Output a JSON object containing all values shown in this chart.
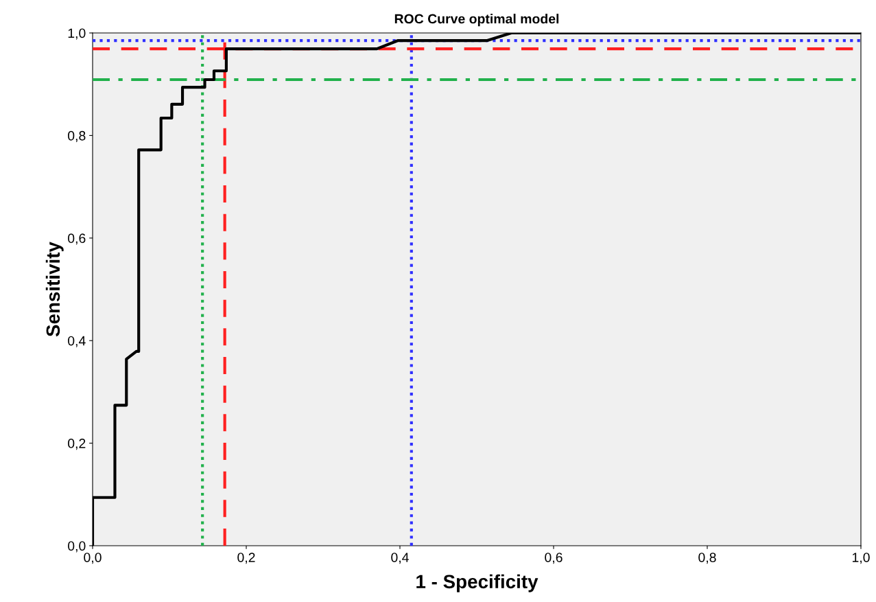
{
  "chart_data": {
    "type": "step",
    "title": "ROC Curve optimal model",
    "xlabel": "1 - Specificity",
    "ylabel": "Sensitivity",
    "series": [
      {
        "color": "#000000",
        "x": [
          0,
          0,
          0.029,
          0.029,
          0.044,
          0.044,
          0.057,
          0.06,
          0.06,
          0.089,
          0.089,
          0.103,
          0.103,
          0.117,
          0.117,
          0.146,
          0.146,
          0.158,
          0.158,
          0.174,
          0.174,
          0.37,
          0.397,
          0.513,
          0.545,
          1.0
        ],
        "values": [
          0,
          0.094,
          0.094,
          0.274,
          0.274,
          0.364,
          0.379,
          0.379,
          0.772,
          0.772,
          0.834,
          0.834,
          0.861,
          0.861,
          0.894,
          0.894,
          0.909,
          0.909,
          0.926,
          0.926,
          0.969,
          0.969,
          0.985,
          0.985,
          1.0,
          1.0
        ]
      }
    ],
    "ref_lines": [
      {
        "axis": "x",
        "value": 0.143,
        "label": null,
        "color": "#22b14c",
        "line_style": "dotted"
      },
      {
        "axis": "x",
        "value": 0.172,
        "label": null,
        "color": "#ff2020",
        "line_style": "dashed"
      },
      {
        "axis": "x",
        "value": 0.415,
        "label": null,
        "color": "#3030ff",
        "line_style": "dotted"
      },
      {
        "axis": "y",
        "value": 0.985,
        "label": null,
        "color": "#3030ff",
        "line_style": "dotted"
      },
      {
        "axis": "y",
        "value": 0.969,
        "label": null,
        "color": "#ff2020",
        "line_style": "dashed"
      },
      {
        "axis": "y",
        "value": 0.909,
        "label": null,
        "color": "#22b14c",
        "line_style": "dashdot"
      }
    ],
    "xlim": [
      0,
      1
    ],
    "ylim": [
      0,
      1
    ],
    "xticks": [
      {
        "value": 0,
        "label": "0,0"
      },
      {
        "value": 0.2,
        "label": "0,2"
      },
      {
        "value": 0.4,
        "label": "0,4"
      },
      {
        "value": 0.6,
        "label": "0,6"
      },
      {
        "value": 0.8,
        "label": "0,8"
      },
      {
        "value": 1,
        "label": "1,0"
      }
    ],
    "yticks": [
      {
        "value": 0,
        "label": "0,0"
      },
      {
        "value": 0.2,
        "label": "0,2"
      },
      {
        "value": 0.4,
        "label": "0,4"
      },
      {
        "value": 0.6,
        "label": "0,6"
      },
      {
        "value": 0.8,
        "label": "0,8"
      },
      {
        "value": 1,
        "label": "1,0"
      }
    ],
    "grid": false,
    "legend": false,
    "marker": "none",
    "line_style": "solid"
  }
}
